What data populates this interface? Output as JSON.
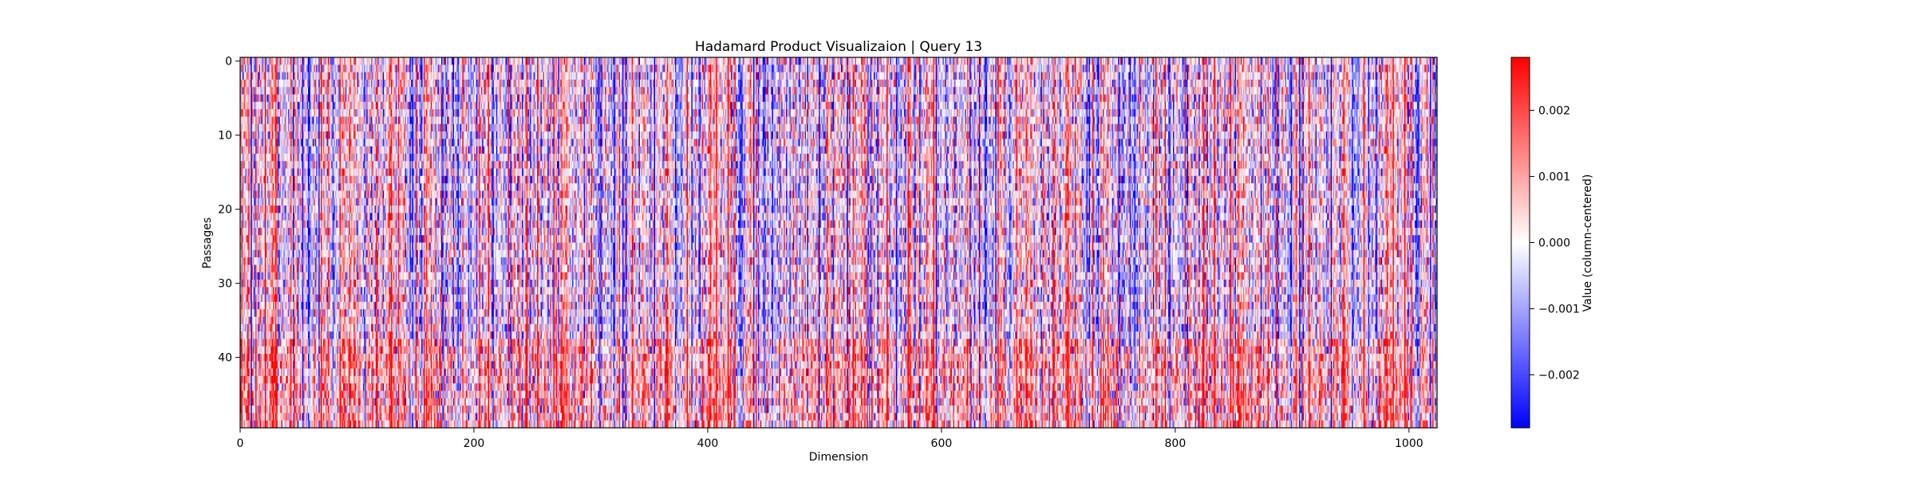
{
  "chart_data": {
    "type": "heatmap",
    "title": "Hadamard Product Visualizaion | Query 13",
    "xlabel": "Dimension",
    "ylabel": "Passages",
    "x_range": [
      0,
      1024
    ],
    "y_range": [
      0,
      50
    ],
    "y_inverted": true,
    "n_rows": 50,
    "n_cols": 1024,
    "x_ticks": [
      0,
      200,
      400,
      600,
      800,
      1000
    ],
    "x_tick_labels": [
      "0",
      "200",
      "400",
      "600",
      "800",
      "1000"
    ],
    "y_ticks": [
      0,
      10,
      20,
      30,
      40
    ],
    "y_tick_labels": [
      "0",
      "10",
      "20",
      "30",
      "40"
    ],
    "colormap": "bwr",
    "colormap_colors": {
      "low": "#0000ff",
      "mid": "#ffffff",
      "high": "#ff0000"
    },
    "value_range": [
      -0.0028,
      0.0028
    ],
    "colorbar": {
      "label": "Value (column-centered)",
      "ticks": [
        0.002,
        0.001,
        0.0,
        -0.001,
        -0.002
      ],
      "tick_labels": [
        "0.002",
        "0.001",
        "0.000",
        "−0.001",
        "−0.002"
      ]
    },
    "note": "Approximate pattern: vertical column streaks; lower rows (~38-49) skew positive (red)."
  }
}
